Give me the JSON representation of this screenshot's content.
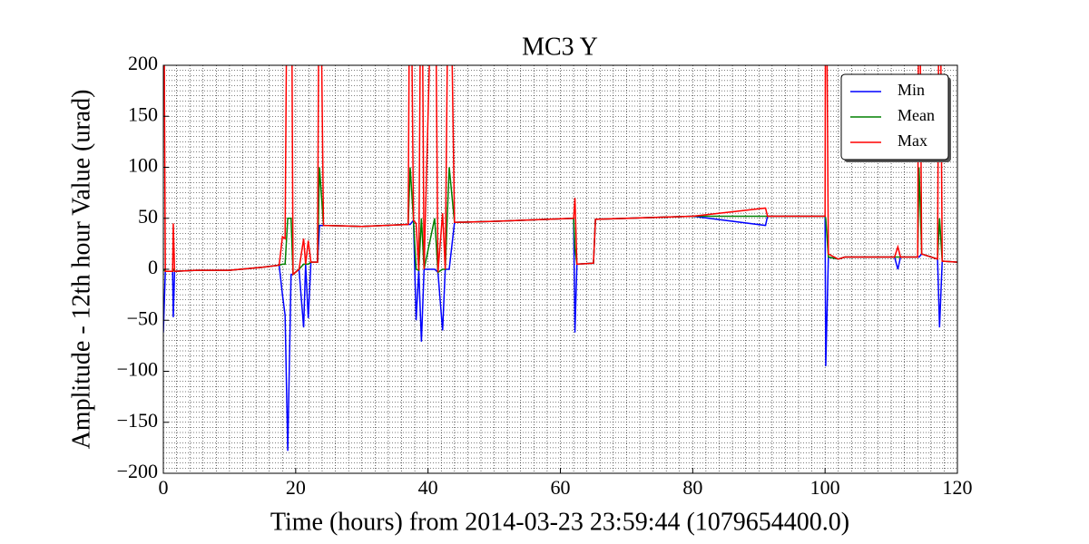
{
  "chart_data": {
    "type": "line",
    "title": "MC3 Y",
    "x_label": "Time (hours) from 2014-03-23 23:59:44 (1079654400.0)",
    "y_label": "Amplitude - 12th hour Value (urad)",
    "x": [
      0,
      0.3,
      1.4,
      1.5,
      1.7,
      5,
      10,
      15,
      17.5,
      18,
      18.4,
      18.8,
      19.3,
      19.6,
      20.5,
      21.2,
      21.5,
      21.9,
      22.3,
      23.3,
      23.6,
      24.2,
      30,
      37,
      37.3,
      37.8,
      38.2,
      38.6,
      39,
      39.4,
      41,
      41.5,
      42.2,
      42.6,
      43.2,
      44,
      50,
      62,
      62.2,
      62.5,
      65,
      65.3,
      80,
      91,
      91.3,
      100,
      100.1,
      100.5,
      102,
      103,
      110.5,
      111,
      111.4,
      114,
      114.2,
      114.6,
      117,
      117.3,
      117.7,
      120
    ],
    "series": [
      {
        "name": "Min",
        "color": "#0000ff",
        "values": [
          -62,
          -2,
          -2,
          -47,
          -2,
          -1,
          -1,
          2,
          4,
          -25,
          -45,
          -178,
          -5,
          -5,
          0,
          -57,
          5,
          -48,
          7,
          7,
          43,
          43,
          42,
          44,
          44,
          48,
          -50,
          -1,
          -71,
          0,
          0,
          -3,
          -60,
          0,
          0,
          46,
          47,
          50,
          -62,
          5,
          6,
          49,
          52,
          43,
          52,
          52,
          -95,
          12,
          10,
          12,
          12,
          0,
          12,
          12,
          12,
          15,
          10,
          -57,
          8,
          7
        ]
      },
      {
        "name": "Mean",
        "color": "#008000",
        "values": [
          0,
          -2,
          -2,
          0,
          -2,
          -1,
          -1,
          2,
          4,
          5,
          5,
          50,
          50,
          -5,
          0,
          5,
          5,
          5,
          7,
          7,
          100,
          43,
          42,
          44,
          100,
          48,
          0,
          -1,
          50,
          0,
          50,
          -3,
          0,
          0,
          100,
          46,
          47,
          50,
          20,
          5,
          6,
          49,
          52,
          52,
          52,
          52,
          50,
          12,
          10,
          12,
          12,
          12,
          12,
          12,
          100,
          15,
          10,
          50,
          8,
          7
        ]
      },
      {
        "name": "Max",
        "color": "#ff0000",
        "values": [
          400,
          -2,
          -2,
          45,
          -2,
          -1,
          -1,
          2,
          4,
          32,
          30,
          400,
          400,
          -5,
          0,
          30,
          5,
          28,
          7,
          7,
          400,
          43,
          42,
          44,
          400,
          48,
          45,
          -1,
          400,
          0,
          400,
          -3,
          55,
          0,
          400,
          46,
          47,
          50,
          70,
          5,
          6,
          49,
          52,
          60,
          52,
          52,
          400,
          15,
          10,
          12,
          12,
          22,
          12,
          12,
          400,
          15,
          10,
          400,
          8,
          7
        ]
      }
    ],
    "xlim": [
      0,
      120
    ],
    "xticks": [
      0,
      20,
      40,
      60,
      80,
      100,
      120
    ],
    "ylim": [
      -200,
      200
    ],
    "yticks": [
      {
        "value": -200,
        "label": "−200"
      },
      {
        "value": -150,
        "label": "−150"
      },
      {
        "value": -100,
        "label": "−100"
      },
      {
        "value": -50,
        "label": "−50"
      },
      0,
      50,
      100,
      150,
      200
    ],
    "grid": true,
    "legend": "upper right"
  }
}
